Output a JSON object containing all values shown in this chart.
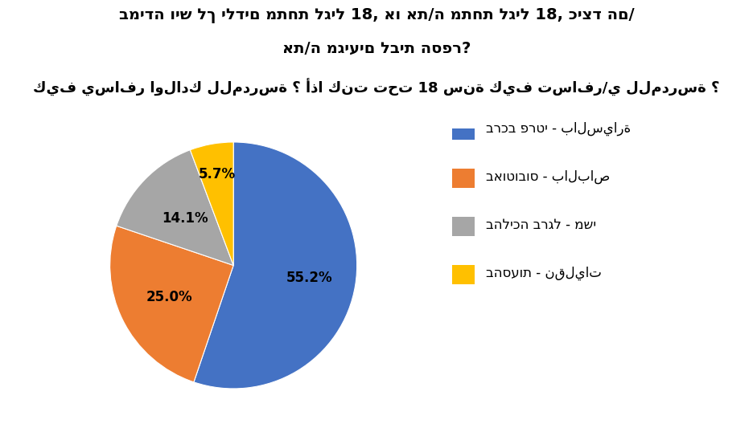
{
  "title_line1": "במידה ויש לך ילדים מתחת לגיל 18, או את/ה מתחת לגיל 18, כיצד הם/",
  "title_line2": "את/ה מגיעים לבית הספר?",
  "title_line3": "كيف يسافر اولادك للمدرسة ؟ أذا كنت تحت 18 سنة كيف تسافر/ي للمدرسة ؟",
  "values": [
    55.2,
    25.0,
    14.1,
    5.7
  ],
  "legend_labels": [
    "ברכב פרטי - بالسيارة",
    "באוטובוס - بالباص",
    "בהליכה ברגל - משי",
    "בהסעות - نقليات"
  ],
  "colors": [
    "#4472c4",
    "#ed7d31",
    "#a6a6a6",
    "#ffc000"
  ],
  "label_texts": [
    "55.2%",
    "25.0%",
    "14.1%",
    "5.7%"
  ],
  "background_color": "#ffffff",
  "text_color": "#000000",
  "title_fontsize": 14,
  "label_fontsize": 12,
  "legend_fontsize": 12
}
